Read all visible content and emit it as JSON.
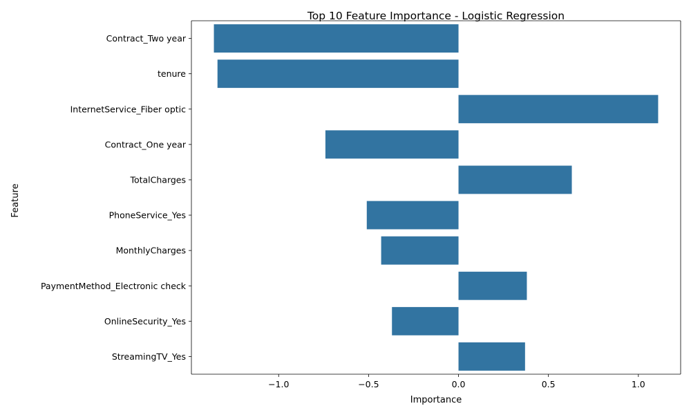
{
  "chart_data": {
    "type": "bar",
    "orientation": "horizontal",
    "title": "Top 10 Feature Importance - Logistic Regression",
    "xlabel": "Importance",
    "ylabel": "Feature",
    "categories": [
      "Contract_Two year",
      "tenure",
      "InternetService_Fiber optic",
      "Contract_One year",
      "TotalCharges",
      "PhoneService_Yes",
      "MonthlyCharges",
      "PaymentMethod_Electronic check",
      "OnlineSecurity_Yes",
      "StreamingTV_Yes"
    ],
    "values": [
      -1.36,
      -1.34,
      1.11,
      -0.74,
      0.63,
      -0.51,
      -0.43,
      0.38,
      -0.37,
      0.37
    ],
    "xlim": [
      -1.485,
      1.235
    ],
    "xticks": [
      -1.0,
      -0.5,
      0.0,
      0.5,
      1.0
    ],
    "xtick_labels": [
      "−1.0",
      "−0.5",
      "0.0",
      "0.5",
      "1.0"
    ],
    "grid": false,
    "bar_color": "#3274a1"
  }
}
